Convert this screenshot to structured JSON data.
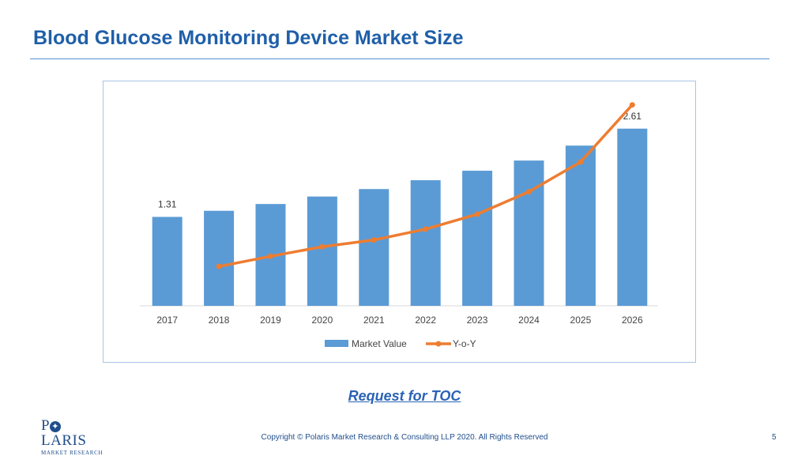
{
  "slide": {
    "title": "Blood Glucose Monitoring Device Market Size",
    "toc_link": "Request for TOC",
    "copyright": "Copyright © Polaris Market Research & Consulting LLP 2020. All Rights Reserved",
    "page_number": "5"
  },
  "logo": {
    "main_before": "P",
    "main_after": "LARIS",
    "sub": "MARKET RESEARCH"
  },
  "chart_data": {
    "type": "bar",
    "title": "",
    "xlabel": "",
    "ylabel": "",
    "categories": [
      "2017",
      "2018",
      "2019",
      "2020",
      "2021",
      "2022",
      "2023",
      "2024",
      "2025",
      "2026"
    ],
    "series": [
      {
        "name": "Market Value",
        "type": "bar",
        "color": "#5b9bd5",
        "values": [
          1.31,
          1.4,
          1.5,
          1.61,
          1.72,
          1.85,
          1.99,
          2.14,
          2.36,
          2.61
        ],
        "data_labels": {
          "0": "1.31",
          "9": "2.61"
        }
      },
      {
        "name": "Y-o-Y",
        "type": "line",
        "color": "#ed7d31",
        "values": [
          null,
          0.58,
          0.73,
          0.87,
          0.97,
          1.13,
          1.35,
          1.68,
          2.12,
          2.96
        ]
      }
    ],
    "ylim": [
      0,
      2.84
    ],
    "grid": false,
    "legend_position": "bottom"
  }
}
